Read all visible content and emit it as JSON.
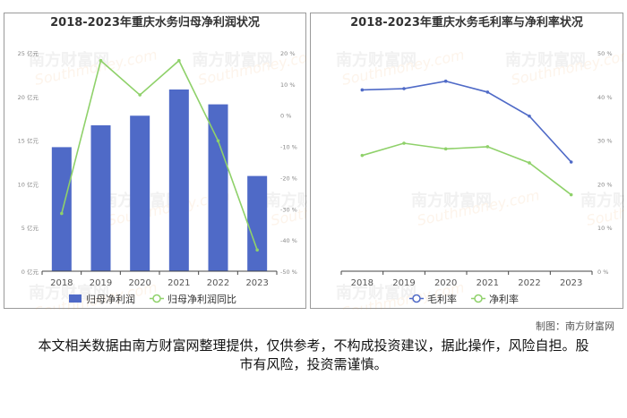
{
  "chart_data": [
    {
      "type": "bar",
      "title": "2018-2023年重庆水务归母净利润状况",
      "categories": [
        "2018",
        "2019",
        "2020",
        "2021",
        "2022",
        "2023"
      ],
      "series": [
        {
          "name": "归母净利润",
          "kind": "bar",
          "axis": "left",
          "color": "#4f6ac7",
          "values": [
            14.2,
            16.7,
            17.8,
            20.8,
            19.1,
            10.9
          ]
        },
        {
          "name": "归母净利润同比",
          "kind": "line",
          "axis": "right",
          "color": "#8fd16a",
          "values": [
            -31.5,
            17.5,
            6.5,
            17.5,
            -8.2,
            -43.2
          ]
        }
      ],
      "left_axis": {
        "ticks": [
          0,
          5,
          10,
          15,
          20,
          25
        ],
        "tick_labels": [
          "0 亿元",
          "5 亿元",
          "10 亿元",
          "15 亿元",
          "20 亿元",
          "25 亿元"
        ],
        "ylim": [
          0,
          25
        ]
      },
      "right_axis": {
        "ticks": [
          -50,
          -40,
          -30,
          -20,
          -10,
          0,
          10,
          20
        ],
        "tick_labels": [
          "-50 %",
          "-40 %",
          "-30 %",
          "-20 %",
          "-10 %",
          "0 %",
          "10 %",
          "20 %"
        ],
        "ylim": [
          -50,
          20
        ]
      },
      "legend_position": "bottom",
      "grid": false
    },
    {
      "type": "line",
      "title": "2018-2023年重庆水务毛利率与净利率状况",
      "categories": [
        "2018",
        "2019",
        "2020",
        "2021",
        "2022",
        "2023"
      ],
      "series": [
        {
          "name": "毛利率",
          "color": "#4f6ac7",
          "values": [
            41.5,
            41.8,
            43.5,
            41.0,
            35.5,
            25.0
          ]
        },
        {
          "name": "净利率",
          "color": "#8fd16a",
          "values": [
            26.5,
            29.3,
            28.0,
            28.5,
            24.8,
            17.5
          ]
        }
      ],
      "right_axis": {
        "ticks": [
          0,
          10,
          20,
          30,
          40,
          50
        ],
        "tick_labels": [
          "0 %",
          "10 %",
          "20 %",
          "30 %",
          "40 %",
          "50 %"
        ],
        "ylim": [
          0,
          50
        ]
      },
      "legend_position": "bottom",
      "grid": false
    }
  ],
  "credit": "制图：南方财富网",
  "disclaimer": "本文相关数据由南方财富网整理提供，仅供参考，不构成投资建议，据此操作，风险自担。股市有风险，投资需谨慎。",
  "watermark": {
    "cn": "南方财富网",
    "en": "Southmoney.com"
  }
}
